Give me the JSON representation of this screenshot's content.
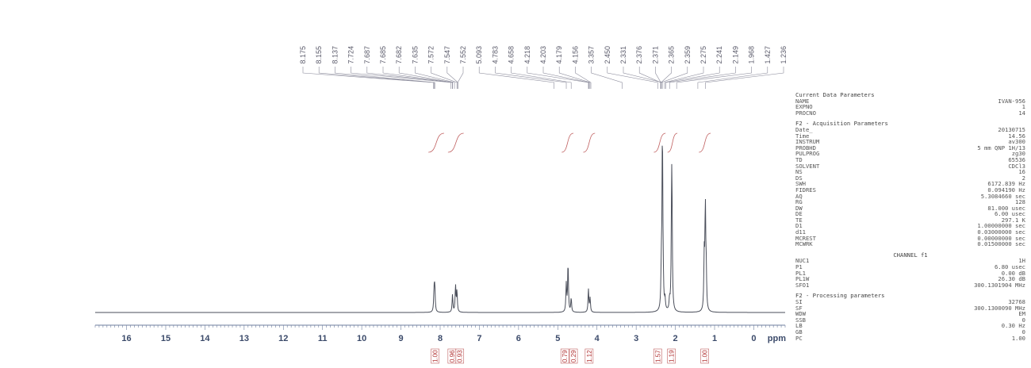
{
  "chart_data": {
    "type": "line",
    "title": "",
    "xlabel": "ppm",
    "ylabel": "",
    "xlim": [
      16.8,
      -0.8
    ],
    "x_reversed": true,
    "grid": false,
    "x_ticks": [
      16,
      15,
      14,
      13,
      12,
      11,
      10,
      9,
      8,
      7,
      6,
      5,
      4,
      3,
      2,
      1,
      0
    ],
    "series": [
      {
        "peaks": [
          {
            "ppm": 8.155,
            "height": 0.12
          },
          {
            "ppm": 8.137,
            "height": 0.14
          },
          {
            "ppm": 7.685,
            "height": 0.1
          },
          {
            "ppm": 7.608,
            "height": 0.15
          },
          {
            "ppm": 7.572,
            "height": 0.12
          },
          {
            "ppm": 4.783,
            "height": 0.16
          },
          {
            "ppm": 4.738,
            "height": 0.28
          },
          {
            "ppm": 4.658,
            "height": 0.08
          },
          {
            "ppm": 4.218,
            "height": 0.13
          },
          {
            "ppm": 4.176,
            "height": 0.08
          },
          {
            "ppm": 2.358,
            "height": 0.22
          },
          {
            "ppm": 2.331,
            "height": 1.0
          },
          {
            "ppm": 2.314,
            "height": 0.1
          },
          {
            "ppm": 2.265,
            "height": 0.06
          },
          {
            "ppm": 2.149,
            "height": 0.06
          },
          {
            "ppm": 2.098,
            "height": 0.38
          },
          {
            "ppm": 2.088,
            "height": 0.6
          },
          {
            "ppm": 1.264,
            "height": 0.3
          },
          {
            "ppm": 1.236,
            "height": 0.58
          },
          {
            "ppm": 1.214,
            "height": 0.2
          }
        ]
      }
    ],
    "peak_labels": [
      "8.175",
      "8.155",
      "8.137",
      "7.724",
      "7.687",
      "7.685",
      "7.682",
      "7.635",
      "7.572",
      "7.547",
      "7.552",
      "5.093",
      "4.783",
      "4.658",
      "4.218",
      "4.203",
      "4.179",
      "4.156",
      "3.357",
      "2.450",
      "2.331",
      "2.376",
      "2.371",
      "2.365",
      "2.359",
      "2.275",
      "2.241",
      "2.149",
      "1.968",
      "1.427",
      "1.236"
    ],
    "integrals": [
      {
        "ppm": 8.13,
        "value": "1.00"
      },
      {
        "ppm": 7.7,
        "value": "0.96"
      },
      {
        "ppm": 7.5,
        "value": "0.93"
      },
      {
        "ppm": 4.82,
        "value": "0.79"
      },
      {
        "ppm": 4.6,
        "value": "0.29"
      },
      {
        "ppm": 4.2,
        "value": "1.12"
      },
      {
        "ppm": 2.45,
        "value": "1.57"
      },
      {
        "ppm": 2.1,
        "value": "1.19"
      },
      {
        "ppm": 1.25,
        "value": "1.00"
      }
    ]
  },
  "params": {
    "current": {
      "heading": "Current Data Parameters",
      "rows": [
        [
          "NAME",
          "IVAN-956"
        ],
        [
          "EXPNO",
          "1"
        ],
        [
          "PROCNO",
          "14"
        ]
      ]
    },
    "f2_acq": {
      "heading": "F2 - Acquisition Parameters",
      "rows": [
        [
          "Date_",
          "20130715"
        ],
        [
          "Time",
          "14.56"
        ],
        [
          "INSTRUM",
          "av300"
        ],
        [
          "PROBHD",
          "5 mm QNP 1H/13"
        ],
        [
          "PULPROG",
          "zg30"
        ],
        [
          "TD",
          "65536"
        ],
        [
          "SOLVENT",
          "CDCl3"
        ],
        [
          "NS",
          "16"
        ],
        [
          "DS",
          "2"
        ],
        [
          "SWH",
          "6172.839 Hz"
        ],
        [
          "FIDRES",
          "0.094190 Hz"
        ],
        [
          "AQ",
          "5.3084660 sec"
        ],
        [
          "RG",
          "128"
        ],
        [
          "DW",
          "81.000 usec"
        ],
        [
          "DE",
          "6.00 usec"
        ],
        [
          "TE",
          "297.1 K"
        ],
        [
          "D1",
          "1.00000000 sec"
        ],
        [
          "d11",
          "0.03000000 sec"
        ],
        [
          "MCREST",
          "0.00000000 sec"
        ],
        [
          "MCWRK",
          "0.01500000 sec"
        ]
      ]
    },
    "channel": {
      "heading": "CHANNEL f1",
      "rows": [
        [
          "NUC1",
          "1H"
        ],
        [
          "P1",
          "6.80 usec"
        ],
        [
          "PL1",
          "0.00 dB"
        ],
        [
          "PL1W",
          "26.30 dB"
        ],
        [
          "SFO1",
          "300.1301904 MHz"
        ]
      ]
    },
    "f2_proc": {
      "heading": "F2 - Processing parameters",
      "rows": [
        [
          "SI",
          "32768"
        ],
        [
          "SF",
          "300.1300090 MHz"
        ],
        [
          "WDW",
          "EM"
        ],
        [
          "SSB",
          "0"
        ],
        [
          "LB",
          "0.30 Hz"
        ],
        [
          "GB",
          "0"
        ],
        [
          "PC",
          "1.00"
        ]
      ]
    }
  },
  "colors": {
    "trace": "#4a4e5a",
    "axis": "#6f7f9f",
    "axis_text": "#3b4a6a",
    "integral": "#c06060",
    "peak_lines": "#8a8a9a"
  }
}
